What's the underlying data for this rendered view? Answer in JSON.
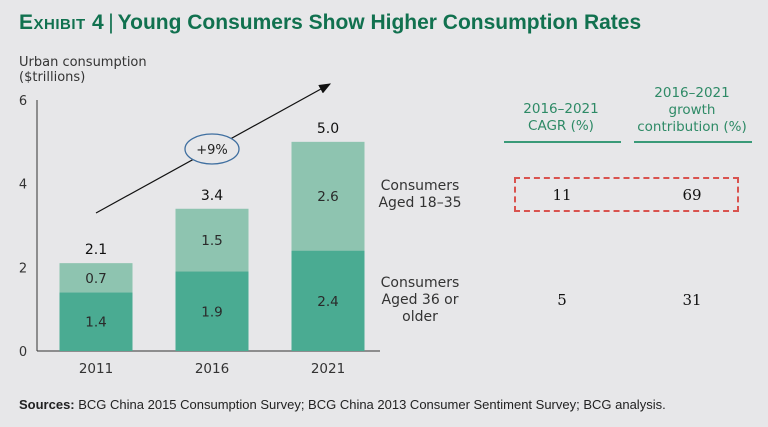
{
  "title": {
    "exhibit": "Exhibit 4",
    "separator": "|",
    "text": "Young Consumers Show Higher Consumption Rates"
  },
  "colors": {
    "title": "#11714f",
    "bar_young": "#8ec4b0",
    "bar_older": "#4aab92",
    "highlight_border": "#d9534f",
    "annotation_ellipse": "#3f6fa0"
  },
  "chart_data": {
    "type": "bar",
    "stacked": true,
    "title": "",
    "ylabel": "Urban consumption ($trillions)",
    "ylabel_lines": [
      "Urban consumption",
      "($trillions)"
    ],
    "xlabel": "",
    "categories": [
      "2011",
      "2016",
      "2021"
    ],
    "ylim": [
      0,
      6
    ],
    "yticks": [
      0,
      2,
      4,
      6
    ],
    "series": [
      {
        "name": "Consumers Aged 36 or older",
        "values": [
          1.4,
          1.9,
          2.4
        ]
      },
      {
        "name": "Consumers Aged 18–35",
        "values": [
          0.7,
          1.5,
          2.6
        ]
      }
    ],
    "totals": [
      "2.1",
      "3.4",
      "5.0"
    ],
    "segment_labels": [
      [
        "1.4",
        "0.7"
      ],
      [
        "1.9",
        "1.5"
      ],
      [
        "2.4",
        "2.6"
      ]
    ],
    "annotation": {
      "text": "+9%",
      "shape": "ellipse on trend arrow"
    },
    "legend": "inline-right"
  },
  "table": {
    "columns": [
      {
        "lines": [
          "2016–2021",
          "CAGR (%)"
        ]
      },
      {
        "lines": [
          "2016–2021",
          "growth",
          "contribution (%)"
        ]
      }
    ],
    "rows": [
      {
        "label_lines": [
          "Consumers",
          "Aged 18–35"
        ],
        "cagr": "11",
        "contribution": "69",
        "highlighted": true
      },
      {
        "label_lines": [
          "Consumers",
          "Aged 36 or",
          "older"
        ],
        "cagr": "5",
        "contribution": "31",
        "highlighted": false
      }
    ]
  },
  "sources": {
    "label": "Sources:",
    "text": " BCG China 2015 Consumption Survey; BCG China 2013 Consumer Sentiment Survey; BCG analysis."
  }
}
